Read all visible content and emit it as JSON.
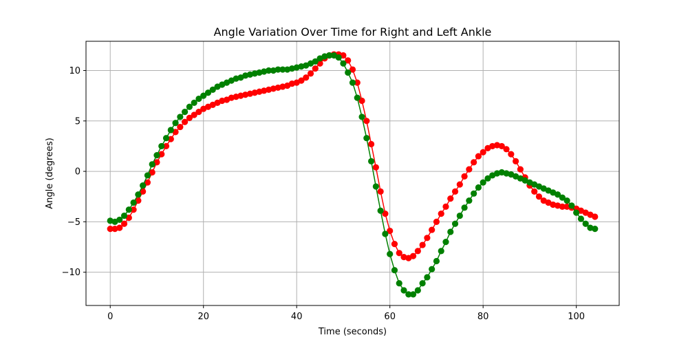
{
  "chart_data": {
    "type": "line",
    "title": "Angle Variation Over Time for Right and Left Ankle",
    "xlabel": "Time (seconds)",
    "ylabel": "Angle (degrees)",
    "xlim": [
      -5.2,
      109.2
    ],
    "ylim": [
      -13.3,
      12.9
    ],
    "x_ticks": [
      0,
      20,
      40,
      60,
      80,
      100
    ],
    "y_ticks": [
      -10,
      -5,
      0,
      5,
      10
    ],
    "grid": true,
    "series": [
      {
        "color": "#ff0000",
        "values": [
          -5.7,
          -5.7,
          -5.6,
          -5.2,
          -4.6,
          -3.8,
          -2.9,
          -2.0,
          -1.1,
          -0.1,
          0.9,
          1.7,
          2.5,
          3.2,
          3.9,
          4.4,
          4.9,
          5.3,
          5.6,
          5.9,
          6.2,
          6.4,
          6.6,
          6.8,
          7.0,
          7.1,
          7.3,
          7.4,
          7.5,
          7.6,
          7.7,
          7.8,
          7.9,
          8.0,
          8.1,
          8.2,
          8.3,
          8.4,
          8.5,
          8.7,
          8.8,
          9.0,
          9.3,
          9.7,
          10.2,
          10.7,
          11.2,
          11.5,
          11.6,
          11.6,
          11.5,
          11.0,
          10.1,
          8.8,
          7.0,
          5.0,
          2.7,
          0.4,
          -2.0,
          -4.2,
          -5.9,
          -7.2,
          -8.1,
          -8.5,
          -8.6,
          -8.4,
          -7.9,
          -7.3,
          -6.6,
          -5.8,
          -5.0,
          -4.2,
          -3.5,
          -2.7,
          -2.0,
          -1.3,
          -0.5,
          0.2,
          0.9,
          1.5,
          1.9,
          2.3,
          2.5,
          2.6,
          2.5,
          2.2,
          1.7,
          1.0,
          0.2,
          -0.6,
          -1.4,
          -2.0,
          -2.5,
          -2.9,
          -3.1,
          -3.3,
          -3.4,
          -3.5,
          -3.5,
          -3.6,
          -3.7,
          -3.9,
          -4.1,
          -4.3,
          -4.5
        ]
      },
      {
        "color": "#008000",
        "values": [
          -4.9,
          -5.0,
          -4.8,
          -4.4,
          -3.8,
          -3.1,
          -2.3,
          -1.4,
          -0.4,
          0.7,
          1.6,
          2.5,
          3.3,
          4.1,
          4.8,
          5.4,
          5.9,
          6.4,
          6.8,
          7.2,
          7.5,
          7.8,
          8.1,
          8.4,
          8.6,
          8.8,
          9.0,
          9.2,
          9.3,
          9.5,
          9.6,
          9.7,
          9.8,
          9.9,
          10.0,
          10.0,
          10.1,
          10.1,
          10.1,
          10.2,
          10.3,
          10.4,
          10.5,
          10.7,
          10.9,
          11.2,
          11.4,
          11.5,
          11.5,
          11.3,
          10.7,
          9.8,
          8.8,
          7.3,
          5.4,
          3.3,
          1.0,
          -1.5,
          -3.9,
          -6.2,
          -8.2,
          -9.8,
          -11.1,
          -11.8,
          -12.2,
          -12.2,
          -11.8,
          -11.1,
          -10.5,
          -9.7,
          -8.9,
          -7.9,
          -7.0,
          -6.0,
          -5.2,
          -4.4,
          -3.6,
          -2.9,
          -2.2,
          -1.6,
          -1.1,
          -0.7,
          -0.4,
          -0.2,
          -0.1,
          -0.2,
          -0.3,
          -0.5,
          -0.7,
          -0.9,
          -1.1,
          -1.3,
          -1.5,
          -1.7,
          -1.9,
          -2.1,
          -2.3,
          -2.6,
          -2.9,
          -3.4,
          -4.1,
          -4.7,
          -5.2,
          -5.6,
          -5.7
        ]
      }
    ]
  }
}
